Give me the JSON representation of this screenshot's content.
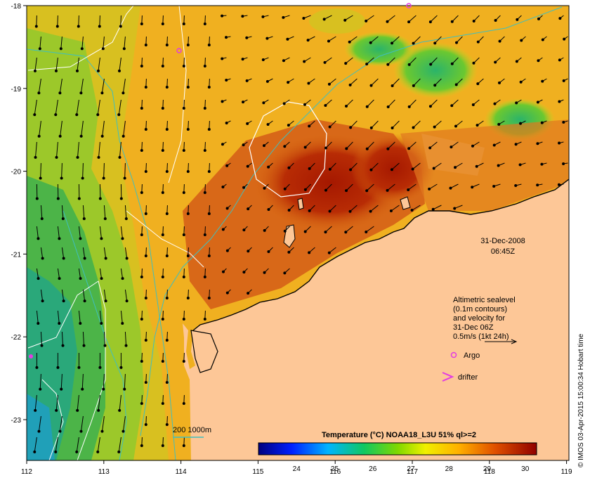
{
  "map": {
    "lon_ticks": [
      "112",
      "113",
      "114",
      "115",
      "116",
      "117",
      "118",
      "119"
    ],
    "lat_ticks": [
      "-18",
      "-19",
      "-20",
      "-21",
      "-22",
      "-23"
    ]
  },
  "annotations": {
    "date": "31-Dec-2008",
    "time": "06:45Z",
    "legend_lines": [
      "Altimetric sealevel",
      "(0.1m contours)",
      "and velocity for",
      "31-Dec 06Z",
      "0.5m/s (1kt 24h)"
    ],
    "argo_label": "Argo",
    "drifter_label": "drifter",
    "bathy_label": "200  1000m"
  },
  "colorbar": {
    "title": "Temperature (°C) NOAA18_L3U 51% ql>=2",
    "ticks": [
      "24",
      "25",
      "26",
      "27",
      "28",
      "29",
      "30"
    ]
  },
  "credit": "© IMOS 03-Apr-2015 15:00:34 Hobart time",
  "colors": {
    "land": "#fdc797",
    "argo": "#e23ce2",
    "bathy": "#3fbfbf",
    "contour": "#ffffff"
  }
}
